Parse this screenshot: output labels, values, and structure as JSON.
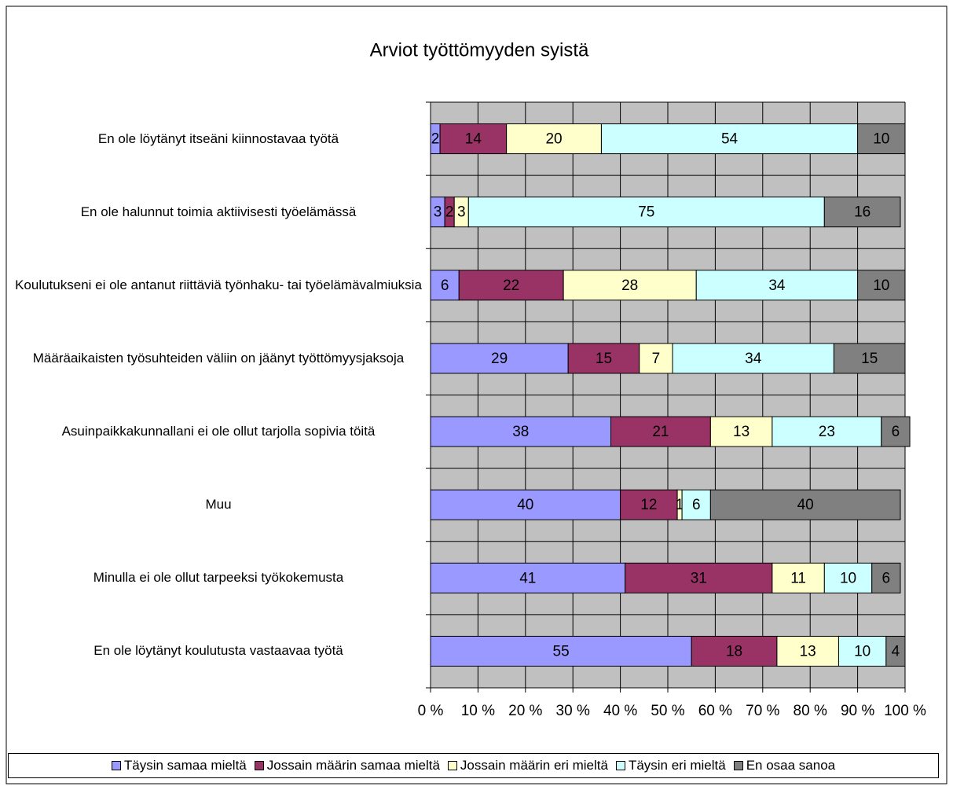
{
  "chart_data": {
    "type": "stacked_bar_horizontal",
    "title": "Arviot työttömyyden syistä",
    "categories": [
      "En ole löytänyt itseäni kiinnostavaa työtä",
      "En ole halunnut toimia aktiivisesti työelämässä",
      "Koulutukseni ei ole antanut riittäviä työnhaku- tai työelämävalmiuksia",
      "Määräaikaisten työsuhteiden väliin on jäänyt työttömyysjaksoja",
      "Asuinpaikkakunnallani ei ole ollut tarjolla sopivia töitä",
      "Muu",
      "Minulla ei ole ollut tarpeeksi työkokemusta",
      "En ole löytänyt koulutusta vastaavaa työtä"
    ],
    "series": [
      {
        "name": "Täysin samaa mieltä",
        "color": "#9999ff",
        "values": [
          2,
          3,
          6,
          29,
          38,
          40,
          41,
          55
        ]
      },
      {
        "name": "Jossain määrin samaa mieltä",
        "color": "#993366",
        "values": [
          14,
          2,
          22,
          15,
          21,
          12,
          31,
          18
        ]
      },
      {
        "name": "Jossain määrin eri mieltä",
        "color": "#ffffcc",
        "values": [
          20,
          3,
          28,
          7,
          13,
          1,
          11,
          13
        ]
      },
      {
        "name": "Täysin eri mieltä",
        "color": "#ccffff",
        "values": [
          54,
          75,
          34,
          34,
          23,
          6,
          10,
          10
        ]
      },
      {
        "name": "En osaa sanoa",
        "color": "#808080",
        "values": [
          10,
          16,
          10,
          15,
          6,
          40,
          6,
          4
        ]
      }
    ],
    "xlim": [
      0,
      100
    ],
    "xticks": [
      {
        "value": 0,
        "label": "0 %"
      },
      {
        "value": 10,
        "label": "10 %"
      },
      {
        "value": 20,
        "label": "20 %"
      },
      {
        "value": 30,
        "label": "30 %"
      },
      {
        "value": 40,
        "label": "40 %"
      },
      {
        "value": 50,
        "label": "50 %"
      },
      {
        "value": 60,
        "label": "60 %"
      },
      {
        "value": 70,
        "label": "70 %"
      },
      {
        "value": 80,
        "label": "80 %"
      },
      {
        "value": 90,
        "label": "90 %"
      },
      {
        "value": 100,
        "label": "100 %"
      }
    ],
    "grid": true,
    "legend": "bottom"
  }
}
